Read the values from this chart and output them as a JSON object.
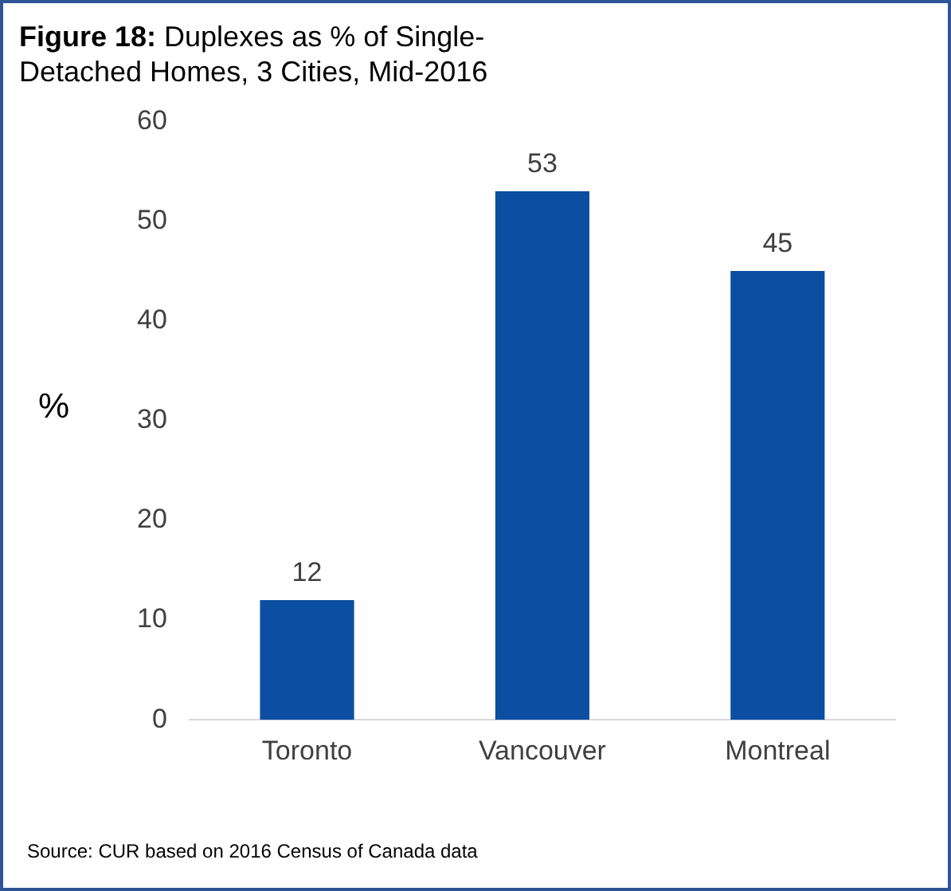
{
  "chart_data": {
    "type": "bar",
    "title": "Figure 18: Duplexes as % of Single-Detached Homes, 3 Cities, Mid-2016",
    "ylabel": "%",
    "categories": [
      "Toronto",
      "Vancouver",
      "Montreal"
    ],
    "values": [
      12,
      53,
      45
    ],
    "color": "#0b4ea2",
    "ylim": [
      0,
      60
    ],
    "yticks": [
      0,
      10,
      20,
      30,
      40,
      50,
      60
    ],
    "data_labels": true,
    "grid": false,
    "legend": false,
    "annotations": [
      "Source: CUR based on 2016 Census of Canada data"
    ]
  }
}
